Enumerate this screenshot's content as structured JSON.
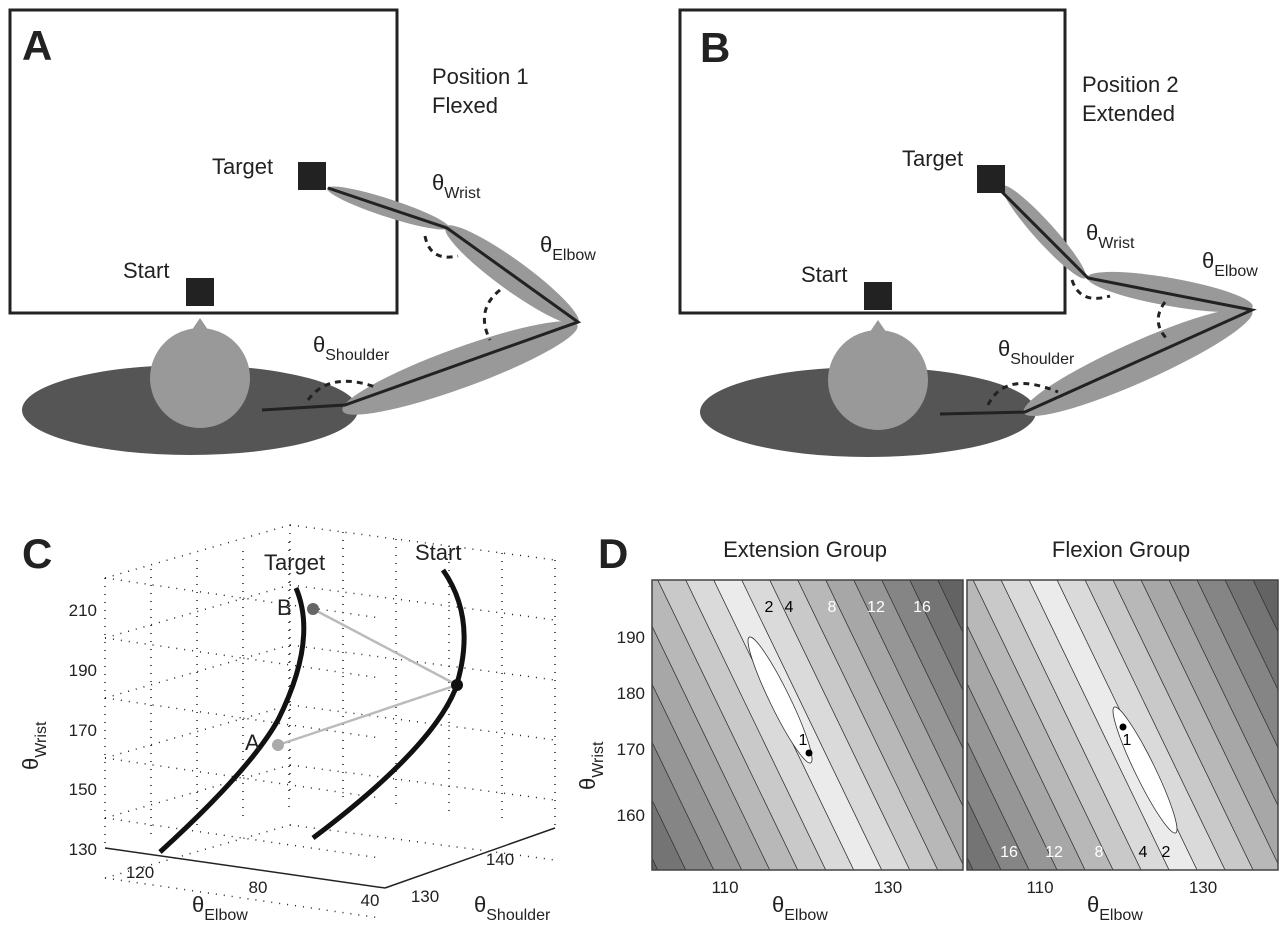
{
  "panel_a": {
    "letter": "A",
    "position": "Position 1",
    "posture": "Flexed",
    "target": "Target",
    "start": "Start",
    "angles": [
      {
        "symbol": "θ",
        "sub": "Wrist"
      },
      {
        "symbol": "θ",
        "sub": "Elbow"
      },
      {
        "symbol": "θ",
        "sub": "Shoulder"
      }
    ]
  },
  "panel_b": {
    "letter": "B",
    "position": "Position 2",
    "posture": "Extended",
    "target": "Target",
    "start": "Start",
    "angles": [
      {
        "symbol": "θ",
        "sub": "Wrist"
      },
      {
        "symbol": "θ",
        "sub": "Elbow"
      },
      {
        "symbol": "θ",
        "sub": "Shoulder"
      }
    ]
  },
  "panel_c": {
    "letter": "C",
    "target": "Target",
    "start": "Start",
    "points": [
      "A",
      "B"
    ],
    "y_label": {
      "symbol": "θ",
      "sub": "Wrist"
    },
    "x_label": {
      "symbol": "θ",
      "sub": "Elbow"
    },
    "z_label": {
      "symbol": "θ",
      "sub": "Shoulder"
    },
    "y_ticks": [
      130,
      150,
      170,
      190,
      210
    ],
    "x_ticks": [
      120,
      80,
      40
    ],
    "z_ticks": [
      130,
      140
    ]
  },
  "panel_d": {
    "letter": "D",
    "y_label": {
      "symbol": "θ",
      "sub": "Wrist"
    },
    "y_ticks": [
      160,
      170,
      180,
      190
    ],
    "plots": [
      {
        "title": "Extension Group",
        "contour_labels": [
          "2",
          "4",
          "8",
          "12",
          "16",
          "1"
        ],
        "x_label": {
          "symbol": "θ",
          "sub": "Elbow"
        },
        "x_ticks": [
          110,
          130
        ]
      },
      {
        "title": "Flexion Group",
        "contour_labels": [
          "16",
          "12",
          "8",
          "4",
          "2",
          "1"
        ],
        "x_label": {
          "symbol": "θ",
          "sub": "Elbow"
        },
        "x_ticks": [
          110,
          130
        ]
      }
    ]
  }
}
